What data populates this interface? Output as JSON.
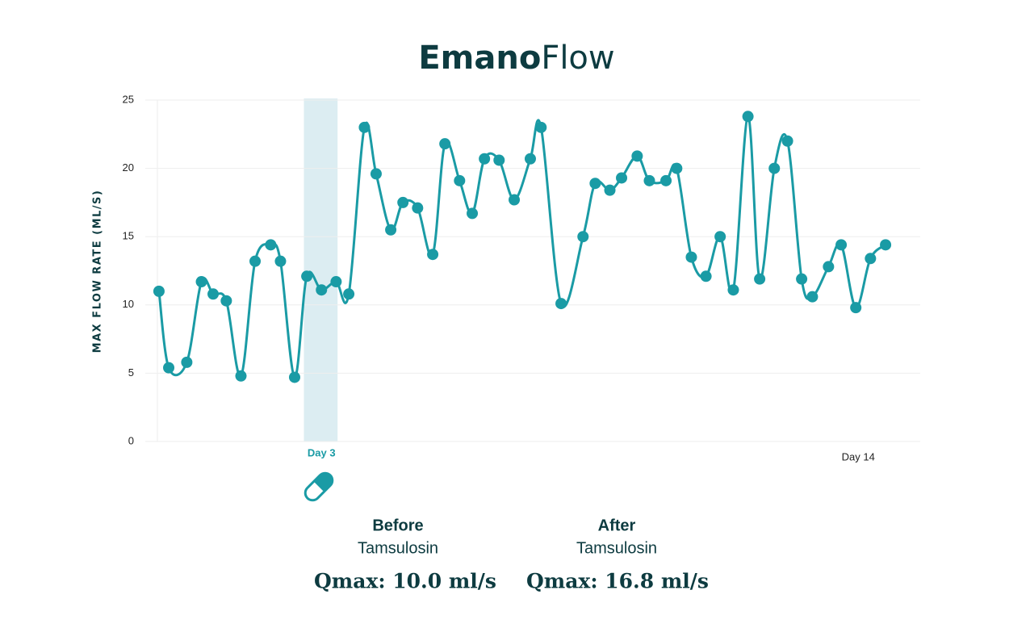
{
  "chart_data": {
    "type": "line",
    "title": {
      "bold": "Emano",
      "light": "Flow"
    },
    "y_label": "MAX FLOW RATE (ML/S)",
    "x": [
      -0.33,
      -0.13,
      0.24,
      0.54,
      0.78,
      1.05,
      1.35,
      1.64,
      1.96,
      2.16,
      2.45,
      2.7,
      3.0,
      3.3,
      3.56,
      3.88,
      4.12,
      4.42,
      4.67,
      4.97,
      5.28,
      5.53,
      5.83,
      6.09,
      6.34,
      6.64,
      6.95,
      7.28,
      7.5,
      7.91,
      8.36,
      8.61,
      8.91,
      9.15,
      9.47,
      9.72,
      10.06,
      10.28,
      10.58,
      10.88,
      11.17,
      11.44,
      11.74,
      11.98,
      12.28,
      12.55,
      12.84,
      13.06,
      13.39,
      13.65,
      13.95,
      14.25,
      14.56
    ],
    "series": [
      {
        "name": "Max flow rate",
        "color": "#1a9ba5",
        "values": [
          11.0,
          5.4,
          5.8,
          11.7,
          10.8,
          10.3,
          4.8,
          13.2,
          14.4,
          13.2,
          4.7,
          12.1,
          11.1,
          11.7,
          10.8,
          23.0,
          19.6,
          15.5,
          17.5,
          17.1,
          13.7,
          21.8,
          19.1,
          16.7,
          20.7,
          20.6,
          17.7,
          20.7,
          23.0,
          10.1,
          15.0,
          18.9,
          18.4,
          19.3,
          20.9,
          19.1,
          19.1,
          20.0,
          13.5,
          12.1,
          15.0,
          11.1,
          23.8,
          11.9,
          20.0,
          22.0,
          11.9,
          10.6,
          12.8,
          14.4,
          9.8,
          13.4,
          14.4
        ]
      }
    ],
    "highlight": [
      2.64,
      3.33
    ],
    "xlim": [
      -0.61,
      15.27
    ],
    "xticks": [
      {
        "value": 3,
        "label": "Day 3"
      },
      {
        "value": 14,
        "label": "Day 14"
      }
    ],
    "ylim": [
      0,
      25
    ],
    "yticks": [
      0,
      5,
      10,
      15,
      20,
      25
    ],
    "grid": true,
    "summary": [
      {
        "heading": "Before",
        "drug": "Tamsulosin",
        "qmax": "Qmax: 10.0 ml/s"
      },
      {
        "heading": "After",
        "drug": "Tamsulosin",
        "qmax": "Qmax: 16.8 ml/s"
      }
    ]
  }
}
